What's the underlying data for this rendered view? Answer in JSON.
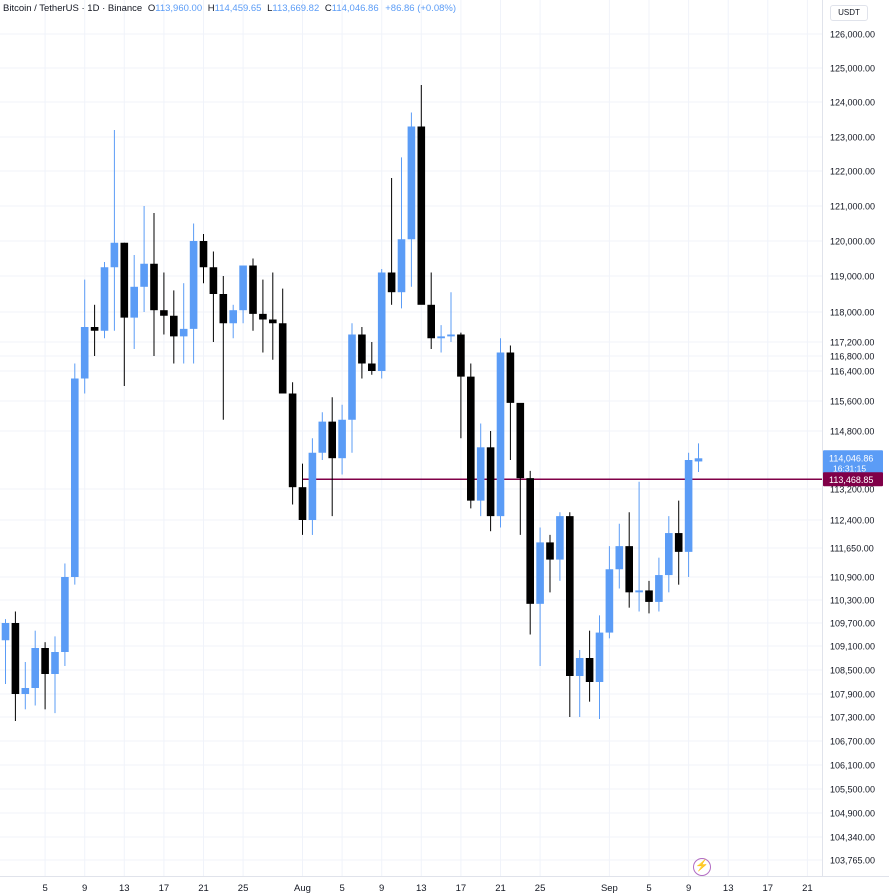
{
  "header": {
    "symbol": "Bitcoin / TetherUS · 1D · Binance",
    "open_key": "O",
    "open": "113,960.00",
    "high_key": "H",
    "high": "114,459.65",
    "low_key": "L",
    "low": "113,669.82",
    "close_key": "C",
    "close": "114,046.86",
    "change": "+86.86 (+0.08%)"
  },
  "unit_label": "USDT",
  "colors": {
    "up": "#5b9cf6",
    "down": "#000000",
    "line": "#800048",
    "grid": "#f0f3fa",
    "text": "#131722"
  },
  "icons": {
    "logo": "lightning-bolt-icon"
  },
  "chart_data": {
    "type": "candlestick",
    "y_axis_ticks": [
      {
        "value": 126000,
        "label": "126,000.00"
      },
      {
        "value": 125000,
        "label": "125,000.00"
      },
      {
        "value": 124000,
        "label": "124,000.00"
      },
      {
        "value": 123000,
        "label": "123,000.00"
      },
      {
        "value": 122000,
        "label": "122,000.00"
      },
      {
        "value": 121000,
        "label": "121,000.00"
      },
      {
        "value": 120000,
        "label": "120,000.00"
      },
      {
        "value": 119000,
        "label": "119,000.00"
      },
      {
        "value": 118000,
        "label": "118,000.00"
      },
      {
        "value": 117200,
        "label": "117,200.00"
      },
      {
        "value": 116800,
        "label": "116,800.00"
      },
      {
        "value": 116400,
        "label": "116,400.00"
      },
      {
        "value": 115600,
        "label": "115,600.00"
      },
      {
        "value": 114800,
        "label": "114,800.00"
      },
      {
        "value": 113200,
        "label": "113,200.00"
      },
      {
        "value": 112400,
        "label": "112,400.00"
      },
      {
        "value": 111650,
        "label": "111,650.00"
      },
      {
        "value": 110900,
        "label": "110,900.00"
      },
      {
        "value": 110300,
        "label": "110,300.00"
      },
      {
        "value": 109700,
        "label": "109,700.00"
      },
      {
        "value": 109100,
        "label": "109,100.00"
      },
      {
        "value": 108500,
        "label": "108,500.00"
      },
      {
        "value": 107900,
        "label": "107,900.00"
      },
      {
        "value": 107300,
        "label": "107,300.00"
      },
      {
        "value": 106700,
        "label": "106,700.00"
      },
      {
        "value": 106100,
        "label": "106,100.00"
      },
      {
        "value": 105500,
        "label": "105,500.00"
      },
      {
        "value": 104900,
        "label": "104,900.00"
      },
      {
        "value": 104340,
        "label": "104,340.00"
      },
      {
        "value": 103765,
        "label": "103,765.00"
      }
    ],
    "x_axis_ticks": [
      {
        "day": 5,
        "label": "5"
      },
      {
        "day": 9,
        "label": "9"
      },
      {
        "day": 13,
        "label": "13"
      },
      {
        "day": 17,
        "label": "17"
      },
      {
        "day": 21,
        "label": "21"
      },
      {
        "day": 25,
        "label": "25"
      },
      {
        "day": 31,
        "label": "Aug"
      },
      {
        "day": 35,
        "label": "5"
      },
      {
        "day": 39,
        "label": "9"
      },
      {
        "day": 43,
        "label": "13"
      },
      {
        "day": 47,
        "label": "17"
      },
      {
        "day": 51,
        "label": "21"
      },
      {
        "day": 55,
        "label": "25"
      },
      {
        "day": 62,
        "label": "Sep"
      },
      {
        "day": 66,
        "label": "5"
      },
      {
        "day": 70,
        "label": "9"
      },
      {
        "day": 74,
        "label": "13"
      },
      {
        "day": 78,
        "label": "17"
      },
      {
        "day": 82,
        "label": "21"
      }
    ],
    "candles": [
      {
        "day": 1,
        "o": 109250,
        "h": 109800,
        "l": 108150,
        "c": 109700
      },
      {
        "day": 2,
        "o": 109700,
        "h": 110000,
        "l": 107200,
        "c": 107900
      },
      {
        "day": 3,
        "o": 107900,
        "h": 108700,
        "l": 107500,
        "c": 108050
      },
      {
        "day": 4,
        "o": 108050,
        "h": 109500,
        "l": 107600,
        "c": 109050
      },
      {
        "day": 5,
        "o": 109050,
        "h": 109200,
        "l": 107500,
        "c": 108400
      },
      {
        "day": 6,
        "o": 108400,
        "h": 109350,
        "l": 107400,
        "c": 108950
      },
      {
        "day": 7,
        "o": 108950,
        "h": 111250,
        "l": 108600,
        "c": 110900
      },
      {
        "day": 8,
        "o": 110900,
        "h": 116600,
        "l": 110700,
        "c": 116200
      },
      {
        "day": 9,
        "o": 116200,
        "h": 118900,
        "l": 115800,
        "c": 117600
      },
      {
        "day": 10,
        "o": 117600,
        "h": 118200,
        "l": 116800,
        "c": 117500
      },
      {
        "day": 11,
        "o": 117500,
        "h": 119400,
        "l": 117300,
        "c": 119250
      },
      {
        "day": 12,
        "o": 119250,
        "h": 123200,
        "l": 117500,
        "c": 119950
      },
      {
        "day": 13,
        "o": 119950,
        "h": 119950,
        "l": 116000,
        "c": 117850
      },
      {
        "day": 14,
        "o": 117850,
        "h": 119600,
        "l": 117000,
        "c": 118700
      },
      {
        "day": 15,
        "o": 118700,
        "h": 121000,
        "l": 118000,
        "c": 119350
      },
      {
        "day": 16,
        "o": 119350,
        "h": 120800,
        "l": 116800,
        "c": 118050
      },
      {
        "day": 17,
        "o": 118050,
        "h": 119100,
        "l": 117400,
        "c": 117900
      },
      {
        "day": 18,
        "o": 117900,
        "h": 118600,
        "l": 116600,
        "c": 117350
      },
      {
        "day": 19,
        "o": 117350,
        "h": 118800,
        "l": 116600,
        "c": 117550
      },
      {
        "day": 20,
        "o": 117550,
        "h": 120500,
        "l": 116600,
        "c": 120000
      },
      {
        "day": 21,
        "o": 120000,
        "h": 120200,
        "l": 118800,
        "c": 119250
      },
      {
        "day": 22,
        "o": 119250,
        "h": 119700,
        "l": 117200,
        "c": 118500
      },
      {
        "day": 23,
        "o": 118500,
        "h": 119000,
        "l": 115100,
        "c": 117700
      },
      {
        "day": 24,
        "o": 117700,
        "h": 118200,
        "l": 117300,
        "c": 118050
      },
      {
        "day": 25,
        "o": 118050,
        "h": 119300,
        "l": 117700,
        "c": 119300
      },
      {
        "day": 26,
        "o": 119300,
        "h": 119500,
        "l": 117500,
        "c": 117950
      },
      {
        "day": 27,
        "o": 117950,
        "h": 118900,
        "l": 116900,
        "c": 117800
      },
      {
        "day": 28,
        "o": 117800,
        "h": 119100,
        "l": 116700,
        "c": 117700
      },
      {
        "day": 29,
        "o": 117700,
        "h": 118650,
        "l": 115800,
        "c": 115800
      },
      {
        "day": 30,
        "o": 115800,
        "h": 116100,
        "l": 112800,
        "c": 113250
      },
      {
        "day": 31,
        "o": 113250,
        "h": 113900,
        "l": 112000,
        "c": 112400
      },
      {
        "day": 32,
        "o": 112400,
        "h": 114600,
        "l": 112000,
        "c": 114200
      },
      {
        "day": 33,
        "o": 114200,
        "h": 115300,
        "l": 114000,
        "c": 115050
      },
      {
        "day": 34,
        "o": 115050,
        "h": 115700,
        "l": 112500,
        "c": 114050
      },
      {
        "day": 35,
        "o": 114050,
        "h": 115500,
        "l": 113600,
        "c": 115100
      },
      {
        "day": 36,
        "o": 115100,
        "h": 117700,
        "l": 114200,
        "c": 117400
      },
      {
        "day": 37,
        "o": 117400,
        "h": 117600,
        "l": 116200,
        "c": 116600
      },
      {
        "day": 38,
        "o": 116600,
        "h": 117200,
        "l": 116300,
        "c": 116400
      },
      {
        "day": 39,
        "o": 116400,
        "h": 119200,
        "l": 116200,
        "c": 119100
      },
      {
        "day": 40,
        "o": 119100,
        "h": 121800,
        "l": 118200,
        "c": 118550
      },
      {
        "day": 41,
        "o": 118550,
        "h": 122400,
        "l": 118100,
        "c": 120050
      },
      {
        "day": 42,
        "o": 120050,
        "h": 123700,
        "l": 118700,
        "c": 123300
      },
      {
        "day": 43,
        "o": 123300,
        "h": 124500,
        "l": 118300,
        "c": 118200
      },
      {
        "day": 44,
        "o": 118200,
        "h": 119100,
        "l": 117000,
        "c": 117300
      },
      {
        "day": 45,
        "o": 117300,
        "h": 117650,
        "l": 116900,
        "c": 117350
      },
      {
        "day": 46,
        "o": 117350,
        "h": 118550,
        "l": 117200,
        "c": 117400
      },
      {
        "day": 47,
        "o": 117400,
        "h": 117450,
        "l": 114600,
        "c": 116250
      },
      {
        "day": 48,
        "o": 116250,
        "h": 116600,
        "l": 112700,
        "c": 112900
      },
      {
        "day": 49,
        "o": 112900,
        "h": 115000,
        "l": 112500,
        "c": 114350
      },
      {
        "day": 50,
        "o": 114350,
        "h": 114800,
        "l": 112100,
        "c": 112500
      },
      {
        "day": 51,
        "o": 112500,
        "h": 117300,
        "l": 112200,
        "c": 116900
      },
      {
        "day": 52,
        "o": 116900,
        "h": 117100,
        "l": 114000,
        "c": 115550
      },
      {
        "day": 53,
        "o": 115550,
        "h": 115500,
        "l": 112000,
        "c": 113500
      },
      {
        "day": 54,
        "o": 113500,
        "h": 113700,
        "l": 109400,
        "c": 110200
      },
      {
        "day": 55,
        "o": 110200,
        "h": 112200,
        "l": 108600,
        "c": 111800
      },
      {
        "day": 56,
        "o": 111800,
        "h": 112000,
        "l": 110500,
        "c": 111350
      },
      {
        "day": 57,
        "o": 111350,
        "h": 112600,
        "l": 110800,
        "c": 112500
      },
      {
        "day": 58,
        "o": 112500,
        "h": 112600,
        "l": 107300,
        "c": 108350
      },
      {
        "day": 59,
        "o": 108350,
        "h": 109000,
        "l": 107300,
        "c": 108800
      },
      {
        "day": 60,
        "o": 108800,
        "h": 109500,
        "l": 107700,
        "c": 108200
      },
      {
        "day": 61,
        "o": 108200,
        "h": 109900,
        "l": 107250,
        "c": 109450
      },
      {
        "day": 62,
        "o": 109450,
        "h": 111700,
        "l": 109300,
        "c": 111100
      },
      {
        "day": 63,
        "o": 111100,
        "h": 112300,
        "l": 110600,
        "c": 111700
      },
      {
        "day": 64,
        "o": 111700,
        "h": 112600,
        "l": 110100,
        "c": 110500
      },
      {
        "day": 65,
        "o": 110500,
        "h": 113400,
        "l": 110000,
        "c": 110550
      },
      {
        "day": 66,
        "o": 110550,
        "h": 110800,
        "l": 109950,
        "c": 110250
      },
      {
        "day": 67,
        "o": 110250,
        "h": 111400,
        "l": 110000,
        "c": 110950
      },
      {
        "day": 68,
        "o": 110950,
        "h": 112500,
        "l": 110500,
        "c": 112050
      },
      {
        "day": 69,
        "o": 112050,
        "h": 112900,
        "l": 110700,
        "c": 111550
      },
      {
        "day": 70,
        "o": 111550,
        "h": 114200,
        "l": 110900,
        "c": 114000
      },
      {
        "day": 71,
        "o": 113960,
        "h": 114460,
        "l": 113670,
        "c": 114047
      }
    ],
    "price_label": {
      "value": 114046.86,
      "text": "114,046.86",
      "countdown": "16:31:15"
    },
    "horizontal_line": {
      "value": 113468.85,
      "text": "113,468.85"
    }
  }
}
